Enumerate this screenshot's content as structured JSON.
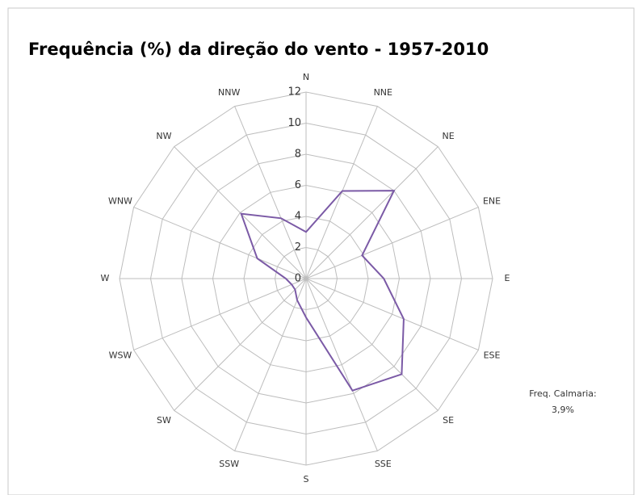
{
  "chart_data": {
    "type": "radar",
    "title": "Frequência (%) da direção do vento - 1957-2010",
    "categories": [
      "N",
      "NNE",
      "NE",
      "ENE",
      "E",
      "ESE",
      "SE",
      "SSE",
      "S",
      "SSW",
      "SW",
      "WSW",
      "W",
      "WNW",
      "NW",
      "NNW"
    ],
    "series": [
      {
        "name": "Frequência",
        "color": "#7b5aa6",
        "values": [
          3.0,
          6.1,
          8.0,
          3.9,
          5.0,
          6.8,
          8.7,
          7.8,
          2.5,
          1.5,
          1.0,
          1.0,
          1.3,
          3.4,
          5.9,
          4.2
        ]
      }
    ],
    "rlim": [
      0,
      12
    ],
    "rticks": [
      0,
      2,
      4,
      6,
      8,
      10,
      12
    ],
    "grid": true,
    "annotation": [
      "Freq. Calmaria:",
      "3,9%"
    ]
  }
}
